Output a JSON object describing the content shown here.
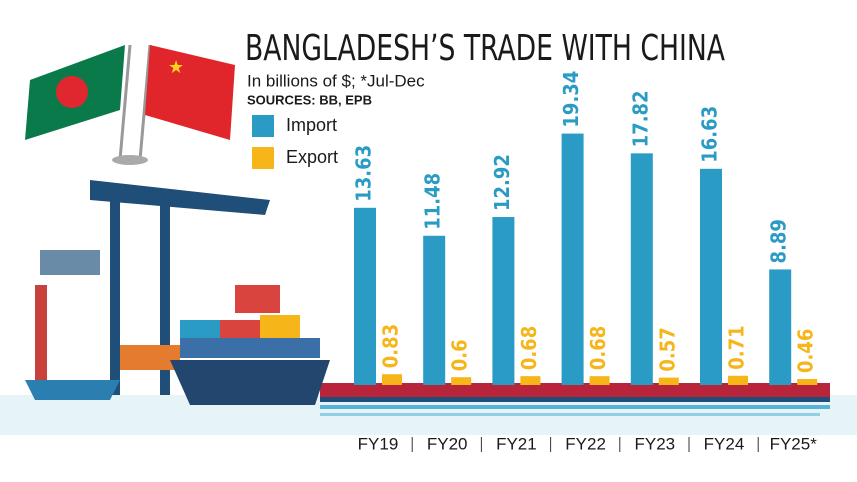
{
  "chart_data": {
    "type": "bar",
    "title": "BANGLADESH’S TRADE WITH CHINA",
    "subtitle": "In billions of $; *Jul-Dec",
    "sources": "SOURCES: BB, EPB",
    "categories": [
      "FY19",
      "FY20",
      "FY21",
      "FY22",
      "FY23",
      "FY24",
      "FY25*"
    ],
    "series": [
      {
        "name": "Import",
        "color": "#2a9bc5",
        "values": [
          13.63,
          11.48,
          12.92,
          19.34,
          17.82,
          16.63,
          8.89
        ]
      },
      {
        "name": "Export",
        "color": "#f6b519",
        "values": [
          0.83,
          0.6,
          0.68,
          0.68,
          0.57,
          0.71,
          0.46
        ]
      }
    ]
  }
}
